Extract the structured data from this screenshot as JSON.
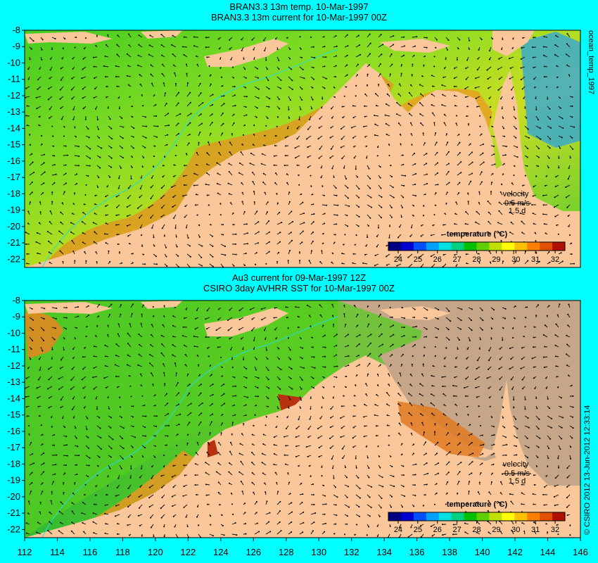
{
  "panel_top": {
    "title_line1": "BRAN3.3 13m temp. 10-Mar-1997",
    "title_line2": "BRAN3.3 13m current for 10-Mar-1997 00Z",
    "side_label": "ocean_temp_1997",
    "velocity_label": "velocity",
    "velocity_scale": "0.5 m/s",
    "velocity_time": "1.5 d",
    "colorbar_title": "temperature (°C)"
  },
  "panel_bottom": {
    "title_line1": "Au3 current for 09-Mar-1997 12Z",
    "title_line2": "CSIRO 3day AVHRR SST for 10-Mar-1997 00Z",
    "side_label": "© CSIRO 2012  13-Jun-2012 12:33:14",
    "velocity_label": "velocity",
    "velocity_scale": "0.5 m/s",
    "velocity_time": "1.5 d",
    "colorbar_title": "temperature (°C)"
  },
  "map": {
    "lon_range": [
      112,
      146
    ],
    "lat_range": [
      -22.5,
      -8
    ],
    "x_ticks": [
      "112",
      "114",
      "116",
      "118",
      "120",
      "122",
      "124",
      "126",
      "128",
      "130",
      "132",
      "134",
      "136",
      "138",
      "140",
      "142",
      "144",
      "146"
    ],
    "y_ticks": [
      "-8",
      "-9",
      "-10",
      "-11",
      "-12",
      "-13",
      "-14",
      "-15",
      "-16",
      "-17",
      "-18",
      "-19",
      "-20",
      "-21",
      "-22"
    ]
  },
  "colorbar": {
    "ticks": [
      "24",
      "25",
      "26",
      "27",
      "28",
      "29",
      "30",
      "31",
      "32"
    ],
    "range": [
      23.5,
      32.5
    ],
    "colors": [
      "#000080",
      "#0000d0",
      "#0050ff",
      "#00a0ff",
      "#00e0e0",
      "#00d080",
      "#00c000",
      "#60d000",
      "#c0e000",
      "#ffff00",
      "#ffc000",
      "#ff8000",
      "#e05000",
      "#b01000"
    ]
  },
  "colors": {
    "background": "#00ffff",
    "land": "#f9c79a",
    "nodata_land": "#c5a689",
    "ocean_green": "#33cc33",
    "ocean_yellow": "#ccdd22",
    "ocean_orange": "#ee9922",
    "ocean_red": "#bb3311",
    "arrow": "#000000"
  }
}
